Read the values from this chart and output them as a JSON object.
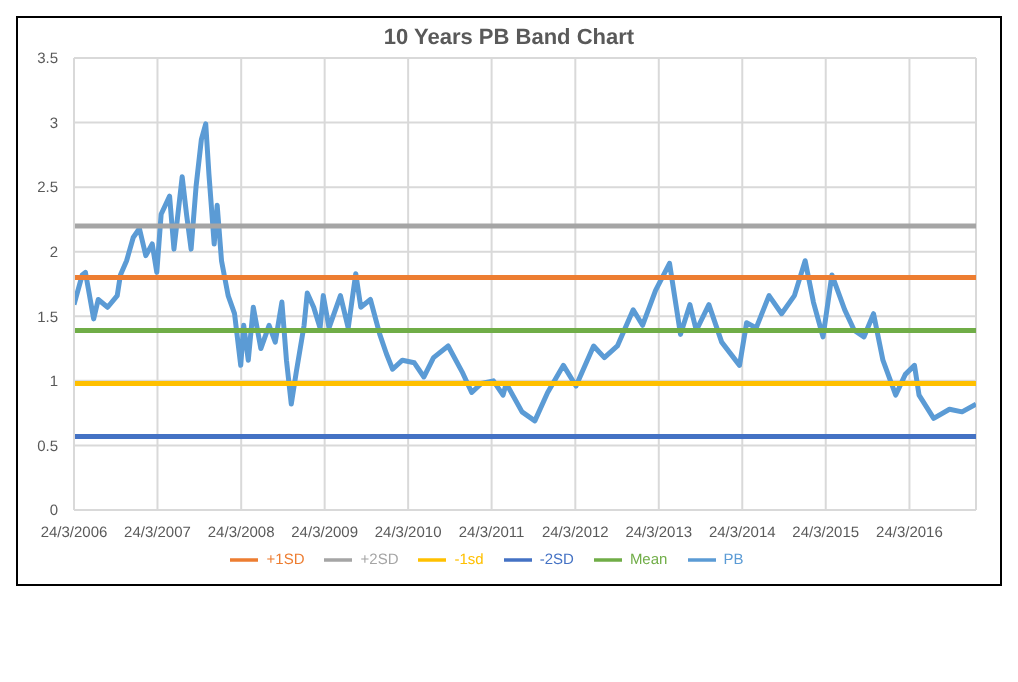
{
  "chart_data": {
    "type": "line",
    "title": "10 Years PB Band Chart",
    "xlim": [
      "2006-03-24",
      "2017-01-09"
    ],
    "xticks": [
      {
        "value": "2006-03-24",
        "label": "24/3/2006"
      },
      {
        "value": "2007-03-24",
        "label": "24/3/2007"
      },
      {
        "value": "2008-03-24",
        "label": "24/3/2008"
      },
      {
        "value": "2009-03-24",
        "label": "24/3/2009"
      },
      {
        "value": "2010-03-24",
        "label": "24/3/2010"
      },
      {
        "value": "2011-03-24",
        "label": "24/3/2011"
      },
      {
        "value": "2012-03-24",
        "label": "24/3/2012"
      },
      {
        "value": "2013-03-24",
        "label": "24/3/2013"
      },
      {
        "value": "2014-03-24",
        "label": "24/3/2014"
      },
      {
        "value": "2015-03-24",
        "label": "24/3/2015"
      },
      {
        "value": "2016-03-24",
        "label": "24/3/2016"
      }
    ],
    "ylim": [
      0,
      3.5
    ],
    "yticks": [
      0,
      0.5,
      1,
      1.5,
      2,
      2.5,
      3,
      3.5
    ],
    "grid": true,
    "legend": "bottom",
    "marker": "none",
    "line_style": "solid",
    "series": [
      {
        "name": "PB",
        "color": "#5b9bd5",
        "x": [
          "2006-03-24",
          "2006-04-29",
          "2006-05-13",
          "2006-06-18",
          "2006-07-08",
          "2006-08-18",
          "2006-09-29",
          "2006-10-13",
          "2006-11-09",
          "2006-12-08",
          "2007-01-04",
          "2007-02-01",
          "2007-03-01",
          "2007-03-21",
          "2007-04-09",
          "2007-05-16",
          "2007-06-04",
          "2007-07-10",
          "2007-07-29",
          "2007-08-18",
          "2007-09-09",
          "2007-10-02",
          "2007-10-21",
          "2007-11-04",
          "2007-11-27",
          "2007-12-10",
          "2007-12-29",
          "2008-01-27",
          "2008-02-24",
          "2008-03-22",
          "2008-04-04",
          "2008-04-24",
          "2008-05-16",
          "2008-06-18",
          "2008-07-24",
          "2008-08-20",
          "2008-09-18",
          "2008-10-08",
          "2008-10-29",
          "2008-11-20",
          "2008-12-24",
          "2009-01-07",
          "2009-02-04",
          "2009-03-04",
          "2009-03-18",
          "2009-04-12",
          "2009-06-01",
          "2009-07-05",
          "2009-08-07",
          "2009-08-29",
          "2009-10-10",
          "2009-11-20",
          "2009-12-19",
          "2010-01-15",
          "2010-02-27",
          "2010-04-20",
          "2010-06-01",
          "2010-07-13",
          "2010-09-15",
          "2010-11-15",
          "2010-12-27",
          "2011-02-07",
          "2011-04-01",
          "2011-05-13",
          "2011-05-27",
          "2011-08-04",
          "2011-09-29",
          "2011-11-24",
          "2012-02-01",
          "2012-03-27",
          "2012-06-12",
          "2012-07-29",
          "2012-09-24",
          "2012-12-02",
          "2013-01-12",
          "2013-03-10",
          "2013-05-10",
          "2013-06-27",
          "2013-08-07",
          "2013-09-04",
          "2013-10-29",
          "2013-12-24",
          "2014-03-12",
          "2014-04-12",
          "2014-05-24",
          "2014-07-19",
          "2014-09-12",
          "2014-11-07",
          "2014-12-24",
          "2015-01-29",
          "2015-03-12",
          "2015-04-20",
          "2015-06-15",
          "2015-07-27",
          "2015-09-07",
          "2015-10-19",
          "2015-11-29",
          "2016-01-24",
          "2016-03-06",
          "2016-04-15",
          "2016-05-05",
          "2016-07-08",
          "2016-09-15",
          "2016-11-09",
          "2017-01-09"
        ],
        "values": [
          1.59,
          1.82,
          1.84,
          1.48,
          1.63,
          1.57,
          1.66,
          1.82,
          1.93,
          2.11,
          2.18,
          1.97,
          2.06,
          1.84,
          2.29,
          2.43,
          2.02,
          2.58,
          2.29,
          2.02,
          2.51,
          2.87,
          2.99,
          2.6,
          2.06,
          2.36,
          1.93,
          1.66,
          1.52,
          1.12,
          1.43,
          1.16,
          1.57,
          1.25,
          1.43,
          1.3,
          1.61,
          1.16,
          0.82,
          1.07,
          1.43,
          1.68,
          1.57,
          1.41,
          1.66,
          1.41,
          1.66,
          1.41,
          1.83,
          1.57,
          1.63,
          1.36,
          1.21,
          1.09,
          1.16,
          1.14,
          1.03,
          1.18,
          1.27,
          1.07,
          0.91,
          0.98,
          1.0,
          0.89,
          0.98,
          0.76,
          0.69,
          0.91,
          1.12,
          0.96,
          1.27,
          1.18,
          1.27,
          1.55,
          1.43,
          1.7,
          1.91,
          1.36,
          1.59,
          1.39,
          1.59,
          1.3,
          1.12,
          1.45,
          1.41,
          1.66,
          1.52,
          1.66,
          1.93,
          1.61,
          1.34,
          1.82,
          1.55,
          1.39,
          1.34,
          1.52,
          1.16,
          0.89,
          1.05,
          1.12,
          0.89,
          0.71,
          0.78,
          0.76,
          0.82
        ]
      },
      {
        "name": "+1SD",
        "color": "#ed7d31",
        "x": [
          "2006-03-24",
          "2017-01-09"
        ],
        "values": [
          1.8,
          1.8
        ]
      },
      {
        "name": "+2SD",
        "color": "#a5a5a5",
        "x": [
          "2006-03-24",
          "2017-01-09"
        ],
        "values": [
          2.2,
          2.2
        ]
      },
      {
        "name": "-1sd",
        "color": "#ffc000",
        "x": [
          "2006-03-24",
          "2017-01-09"
        ],
        "values": [
          0.98,
          0.98
        ]
      },
      {
        "name": "-2SD",
        "color": "#4472c4",
        "x": [
          "2006-03-24",
          "2017-01-09"
        ],
        "values": [
          0.57,
          0.57
        ]
      },
      {
        "name": "Mean",
        "color": "#70ad47",
        "x": [
          "2006-03-24",
          "2017-01-09"
        ],
        "values": [
          1.39,
          1.39
        ]
      }
    ]
  }
}
